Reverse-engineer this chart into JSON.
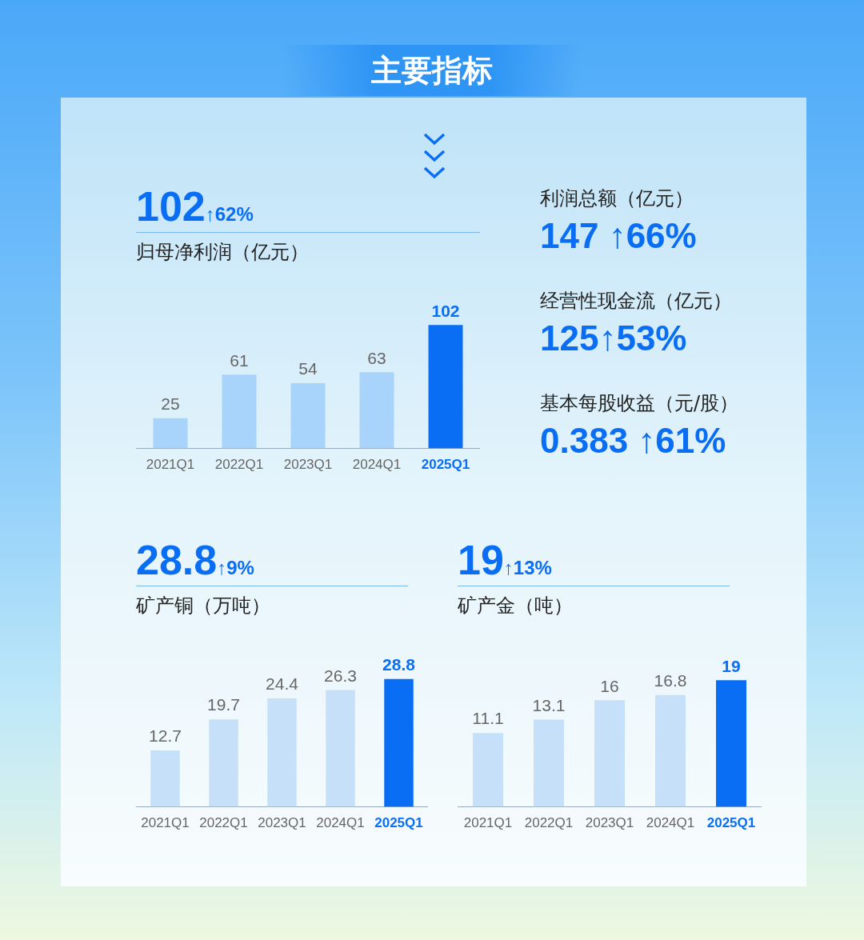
{
  "chart_data": [
    {
      "type": "other",
      "title": "主要指标"
    },
    {
      "type": "bar",
      "title": "归母净利润（亿元）",
      "annotations": [
        "102",
        "↑62%"
      ],
      "categories": [
        "2021Q1",
        "2022Q1",
        "2023Q1",
        "2024Q1",
        "2025Q1"
      ],
      "values": [
        25,
        61,
        54,
        63,
        102
      ],
      "colors": [
        "#a8d3fb",
        "#a8d3fb",
        "#a8d3fb",
        "#a8d3fb",
        "#0a6ef5"
      ],
      "data_labels": true
    },
    {
      "type": "other",
      "annotations": [
        "利润总额（亿元）",
        "147 ↑66%",
        "经营性现金流（亿元）",
        "125↑53%",
        "基本每股收益（元/股）",
        "0.383 ↑61%"
      ]
    },
    {
      "type": "bar",
      "title": "矿产铜（万吨）",
      "annotations": [
        "28.8",
        "↑9%"
      ],
      "categories": [
        "2021Q1",
        "2022Q1",
        "2023Q1",
        "2024Q1",
        "2025Q1"
      ],
      "values": [
        12.7,
        19.7,
        24.4,
        26.3,
        28.8
      ],
      "colors": [
        "#c6e0fa",
        "#c6e0fa",
        "#c6e0fa",
        "#c6e0fa",
        "#0a6ef5"
      ],
      "data_labels": true
    },
    {
      "type": "bar",
      "title": "矿产金（吨）",
      "annotations": [
        "19",
        "↑13%"
      ],
      "categories": [
        "2021Q1",
        "2022Q1",
        "2023Q1",
        "2024Q1",
        "2025Q1"
      ],
      "values": [
        11.1,
        13.1,
        16,
        16.8,
        19
      ],
      "colors": [
        "#c6e0fa",
        "#c6e0fa",
        "#c6e0fa",
        "#c6e0fa",
        "#0a6ef5"
      ],
      "data_labels": true
    }
  ]
}
